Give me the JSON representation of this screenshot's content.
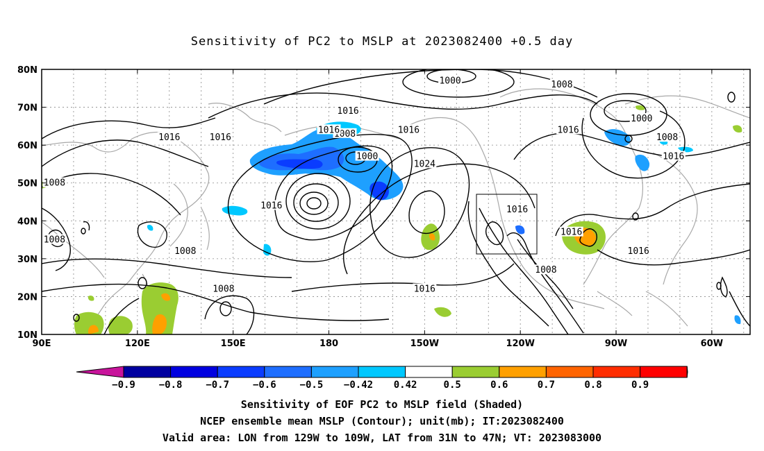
{
  "title": "Sensitivity of PC2 to MSLP at 2023082400 +0.5 day",
  "lat_labels": [
    "80N",
    "70N",
    "60N",
    "50N",
    "40N",
    "30N",
    "20N",
    "10N"
  ],
  "lon_labels": [
    "90E",
    "120E",
    "150E",
    "180",
    "150W",
    "120W",
    "90W",
    "60W"
  ],
  "contour_labels": [
    {
      "text": "1000",
      "lon": -168,
      "lat": 57
    },
    {
      "text": "1000",
      "lon": -142,
      "lat": 77
    },
    {
      "text": "1000",
      "lon": -82,
      "lat": 67
    },
    {
      "text": "1008",
      "lon": -175,
      "lat": 63
    },
    {
      "text": "1008",
      "lon": -107,
      "lat": 76
    },
    {
      "text": "1008",
      "lon": -74,
      "lat": 62
    },
    {
      "text": "1008",
      "lon": 94,
      "lat": 50
    },
    {
      "text": "1008",
      "lon": 94,
      "lat": 35
    },
    {
      "text": "1008",
      "lon": 135,
      "lat": 32
    },
    {
      "text": "1008",
      "lon": 147,
      "lat": 22
    },
    {
      "text": "1008",
      "lon": -112,
      "lat": 27
    },
    {
      "text": "1016",
      "lon": 130,
      "lat": 62
    },
    {
      "text": "1016",
      "lon": 146,
      "lat": 62
    },
    {
      "text": "1016",
      "lon": -174,
      "lat": 69
    },
    {
      "text": "1016",
      "lon": -180,
      "lat": 64
    },
    {
      "text": "1016",
      "lon": -155,
      "lat": 64
    },
    {
      "text": "1016",
      "lon": -105,
      "lat": 64
    },
    {
      "text": "1016",
      "lon": -72,
      "lat": 57
    },
    {
      "text": "1016",
      "lon": -121,
      "lat": 43
    },
    {
      "text": "1016",
      "lon": -104,
      "lat": 37
    },
    {
      "text": "1016",
      "lon": -83,
      "lat": 32
    },
    {
      "text": "1016",
      "lon": 162,
      "lat": 44
    },
    {
      "text": "1016",
      "lon": -150,
      "lat": 22
    },
    {
      "text": "1024",
      "lon": -150,
      "lat": 55
    }
  ],
  "colorbar": {
    "labels": [
      "-0.9",
      "-0.8",
      "-0.7",
      "-0.6",
      "-0.5",
      "-0.42",
      "0.42",
      "0.5",
      "0.6",
      "0.7",
      "0.8",
      "0.9"
    ],
    "colors": [
      "#0000a0",
      "#0000e0",
      "#0a3cff",
      "#1e6eff",
      "#1ea0ff",
      "#00c8ff",
      "#ffffff",
      "#9acd32",
      "#ffa000",
      "#ff6400",
      "#ff2d00",
      "#ff0000"
    ],
    "low_color": "#c8149b",
    "high_color": "#ff9bc8"
  },
  "caption_lines": [
    "Sensitivity of EOF PC2 to MSLP field (Shaded)",
    "NCEP ensemble mean MSLP (Contour); unit(mb); IT:2023082400",
    "Valid area: LON from 129W to 109W, LAT from 31N to 47N; VT: 2023083000"
  ]
}
